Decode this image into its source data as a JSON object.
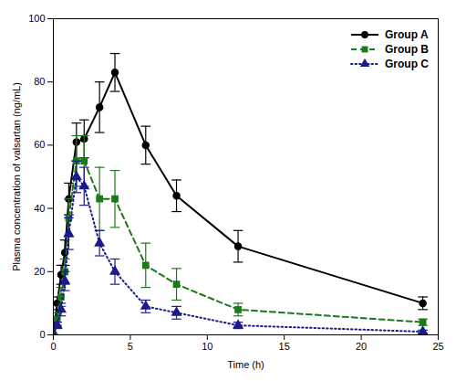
{
  "chart_data": {
    "type": "line",
    "xlabel": "Time (h)",
    "ylabel": "Plasma concentration of valsartan (ng/mL)",
    "xlim": [
      0,
      25
    ],
    "ylim": [
      0,
      100
    ],
    "xticks": [
      0,
      5,
      10,
      15,
      20,
      25
    ],
    "yticks": [
      0,
      20,
      40,
      60,
      80,
      100
    ],
    "grid": false,
    "legend": "upper right",
    "x": [
      0,
      0.25,
      0.5,
      0.75,
      1,
      1.5,
      2,
      3,
      4,
      6,
      8,
      12,
      24
    ],
    "series": [
      {
        "name": "Group A",
        "color": "#000000",
        "marker": "circle",
        "line_style": "solid",
        "values": [
          0,
          10,
          19,
          26,
          43,
          61,
          62,
          72,
          83,
          60,
          44,
          28,
          10
        ],
        "errors": [
          0,
          2,
          3,
          4,
          5,
          6,
          6,
          8,
          6,
          6,
          5,
          5,
          2
        ]
      },
      {
        "name": "Group B",
        "color": "#1a7a1a",
        "marker": "square",
        "line_style": "dashed",
        "values": [
          0,
          5,
          12,
          20,
          37,
          55,
          55,
          43,
          43,
          22,
          16,
          8,
          4
        ],
        "errors": [
          0,
          2,
          3,
          4,
          6,
          8,
          8,
          10,
          9,
          7,
          5,
          2,
          1
        ]
      },
      {
        "name": "Group C",
        "color": "#1a1a8c",
        "marker": "triangle",
        "line_style": "dotted",
        "values": [
          0,
          3,
          8,
          17,
          32,
          50,
          47,
          29,
          20,
          9,
          7,
          3,
          1
        ],
        "errors": [
          0,
          1,
          2,
          3,
          5,
          5,
          6,
          4,
          4,
          2,
          2,
          1,
          0.5
        ]
      }
    ]
  }
}
